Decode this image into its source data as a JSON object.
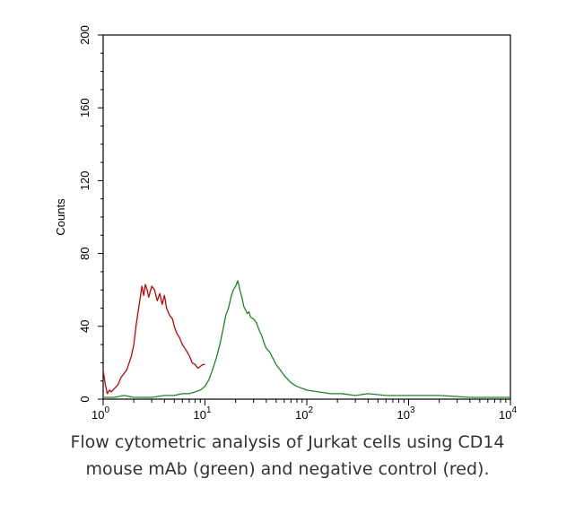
{
  "caption": {
    "line1": "Flow cytometric analysis of Jurkat cells using CD14",
    "line2": "mouse mAb (green) and negative control (red)."
  },
  "chart_data": {
    "type": "line",
    "xscale": "log",
    "xlim": [
      1,
      10000
    ],
    "ylim": [
      0,
      200
    ],
    "ylabel": "Counts",
    "xlabel": "",
    "grid": false,
    "x_ticks": [
      {
        "base": "10",
        "exp": "0",
        "value": 1
      },
      {
        "base": "10",
        "exp": "1",
        "value": 10
      },
      {
        "base": "10",
        "exp": "2",
        "value": 100
      },
      {
        "base": "10",
        "exp": "3",
        "value": 1000
      },
      {
        "base": "10",
        "exp": "4",
        "value": 10000
      }
    ],
    "y_ticks": [
      "0",
      "40",
      "80",
      "120",
      "160",
      "200"
    ],
    "series": [
      {
        "color": "#cc0000",
        "x": [
          1.0,
          1.05,
          1.1,
          1.15,
          1.2,
          1.3,
          1.4,
          1.5,
          1.6,
          1.7,
          1.8,
          1.9,
          2.0,
          2.1,
          2.2,
          2.3,
          2.4,
          2.5,
          2.6,
          2.7,
          2.8,
          3.0,
          3.2,
          3.4,
          3.6,
          3.8,
          4.0,
          4.2,
          4.5,
          4.8,
          5.0,
          5.3,
          5.6,
          6.0,
          6.5,
          7.0,
          7.5,
          8.0,
          8.5,
          9.0,
          9.5,
          10.0
        ],
        "y": [
          16,
          8,
          3,
          5,
          4,
          6,
          8,
          12,
          14,
          16,
          20,
          24,
          30,
          40,
          48,
          55,
          62,
          57,
          63,
          60,
          56,
          62,
          60,
          54,
          58,
          52,
          57,
          50,
          46,
          44,
          40,
          36,
          34,
          30,
          27,
          24,
          20,
          19,
          17,
          18,
          19,
          19
        ]
      },
      {
        "color": "#1a8a1a",
        "x": [
          1.0,
          1.3,
          1.6,
          2.0,
          2.5,
          3.0,
          4.0,
          5.0,
          6.0,
          7.0,
          8.0,
          9.0,
          10.0,
          11.0,
          12.0,
          13.0,
          14.0,
          15.0,
          16.0,
          17.0,
          18.0,
          19.0,
          20.0,
          21.0,
          22.0,
          23.0,
          24.0,
          25.0,
          26.0,
          27.0,
          28.0,
          30.0,
          32.0,
          34.0,
          36.0,
          38.0,
          40.0,
          43.0,
          46.0,
          50.0,
          55.0,
          60.0,
          70.0,
          80.0,
          100.0,
          130.0,
          170.0,
          220.0,
          300.0,
          400.0,
          600.0,
          1000.0,
          2000.0,
          4000.0,
          7000.0,
          10000.0
        ],
        "y": [
          1,
          1,
          2,
          1,
          1,
          1,
          2,
          2,
          3,
          3,
          4,
          5,
          7,
          11,
          17,
          23,
          30,
          38,
          46,
          50,
          56,
          60,
          62,
          65,
          60,
          56,
          51,
          49,
          47,
          48,
          45,
          44,
          42,
          38,
          35,
          31,
          28,
          26,
          23,
          19,
          16,
          13,
          9,
          7,
          5,
          4,
          3,
          3,
          2,
          3,
          2,
          2,
          2,
          1,
          1,
          1
        ]
      }
    ]
  }
}
